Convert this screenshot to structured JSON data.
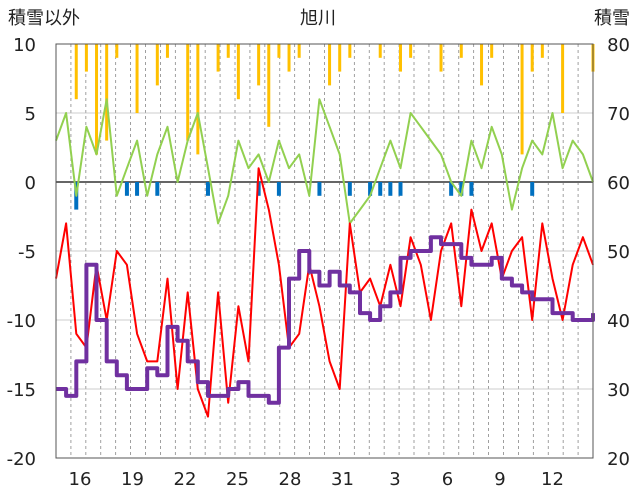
{
  "chart_data": {
    "type": "line",
    "title": "旭川",
    "left_axis_label": "積雪以外",
    "right_axis_label": "積雪",
    "y_left": {
      "min": -20,
      "max": 10,
      "ticks": [
        -20,
        -15,
        -10,
        -5,
        0,
        5,
        10
      ]
    },
    "y_right": {
      "min": 20,
      "max": 80,
      "ticks": [
        20,
        30,
        40,
        50,
        60,
        70,
        80
      ]
    },
    "x_tick_labels": [
      "16",
      "19",
      "22",
      "25",
      "28",
      "31",
      "3",
      "6",
      "9",
      "12"
    ],
    "grid": {
      "vertical": "dashed-daily",
      "horizontal": "solid"
    },
    "colors": {
      "temperature_max": "#92d050",
      "temperature_min": "#ff0000",
      "snow_depth": "#7030a0",
      "precipitation": "#ffc000",
      "negative_bars": "#0070c0"
    },
    "series": [
      {
        "color": "#92d050",
        "axis": "left",
        "values": [
          3,
          5,
          -1,
          4,
          2,
          6,
          -1,
          1,
          3,
          -1,
          2,
          4,
          0,
          3,
          5,
          1,
          -3,
          -1,
          3,
          1,
          2,
          0,
          3,
          1,
          2,
          -1,
          6,
          4,
          2,
          -3,
          -2,
          -1,
          1,
          3,
          1,
          5,
          4,
          3,
          2,
          0,
          -1,
          3,
          1,
          4,
          2,
          -2,
          1,
          3,
          2,
          5,
          1,
          3,
          2,
          0
        ]
      },
      {
        "color": "#ff0000",
        "axis": "left",
        "values": [
          -7,
          -3,
          -11,
          -12,
          -6,
          -10,
          -5,
          -6,
          -11,
          -13,
          -13,
          -7,
          -15,
          -8,
          -15,
          -17,
          -8,
          -16,
          -9,
          -13,
          1,
          -2,
          -6,
          -12,
          -11,
          -6,
          -9,
          -13,
          -15,
          -3,
          -8,
          -7,
          -9,
          -6,
          -9,
          -4,
          -6,
          -10,
          -5,
          -3,
          -9,
          -2,
          -5,
          -3,
          -7,
          -5,
          -4,
          -10,
          -3,
          -7,
          -10,
          -6,
          -4,
          -6
        ]
      },
      {
        "color": "#7030a0",
        "axis": "right",
        "values": [
          30,
          29,
          34,
          48,
          40,
          34,
          32,
          30,
          30,
          33,
          32,
          39,
          37,
          34,
          31,
          29,
          29,
          30,
          31,
          29,
          29,
          28,
          36,
          46,
          50,
          47,
          45,
          47,
          45,
          44,
          41,
          40,
          42,
          44,
          49,
          50,
          50,
          52,
          51,
          51,
          49,
          48,
          48,
          49,
          46,
          45,
          44,
          43,
          43,
          41,
          41,
          40,
          40,
          41
        ]
      }
    ],
    "precipitation": [
      0,
      0,
      4,
      2,
      8,
      7,
      1,
      0,
      5,
      0,
      3,
      1,
      0,
      7,
      8,
      0,
      2,
      1,
      4,
      0,
      3,
      6,
      1,
      2,
      1,
      0,
      0,
      3,
      2,
      1,
      0,
      0,
      1,
      0,
      2,
      1,
      0,
      0,
      2,
      0,
      1,
      0,
      3,
      1,
      0,
      0,
      8,
      2,
      1,
      0,
      5,
      0,
      0,
      2
    ],
    "negative_bars": [
      0,
      0,
      -2,
      0,
      0,
      0,
      0,
      -1,
      -1,
      0,
      -1,
      0,
      0,
      0,
      0,
      -1,
      0,
      0,
      0,
      0,
      -1,
      0,
      -1,
      0,
      0,
      0,
      -1,
      0,
      0,
      -1,
      0,
      -1,
      -1,
      -1,
      -1,
      0,
      0,
      0,
      0,
      -1,
      -1,
      -1,
      0,
      0,
      0,
      0,
      0,
      -1,
      0,
      0,
      0,
      0,
      0,
      0
    ]
  }
}
